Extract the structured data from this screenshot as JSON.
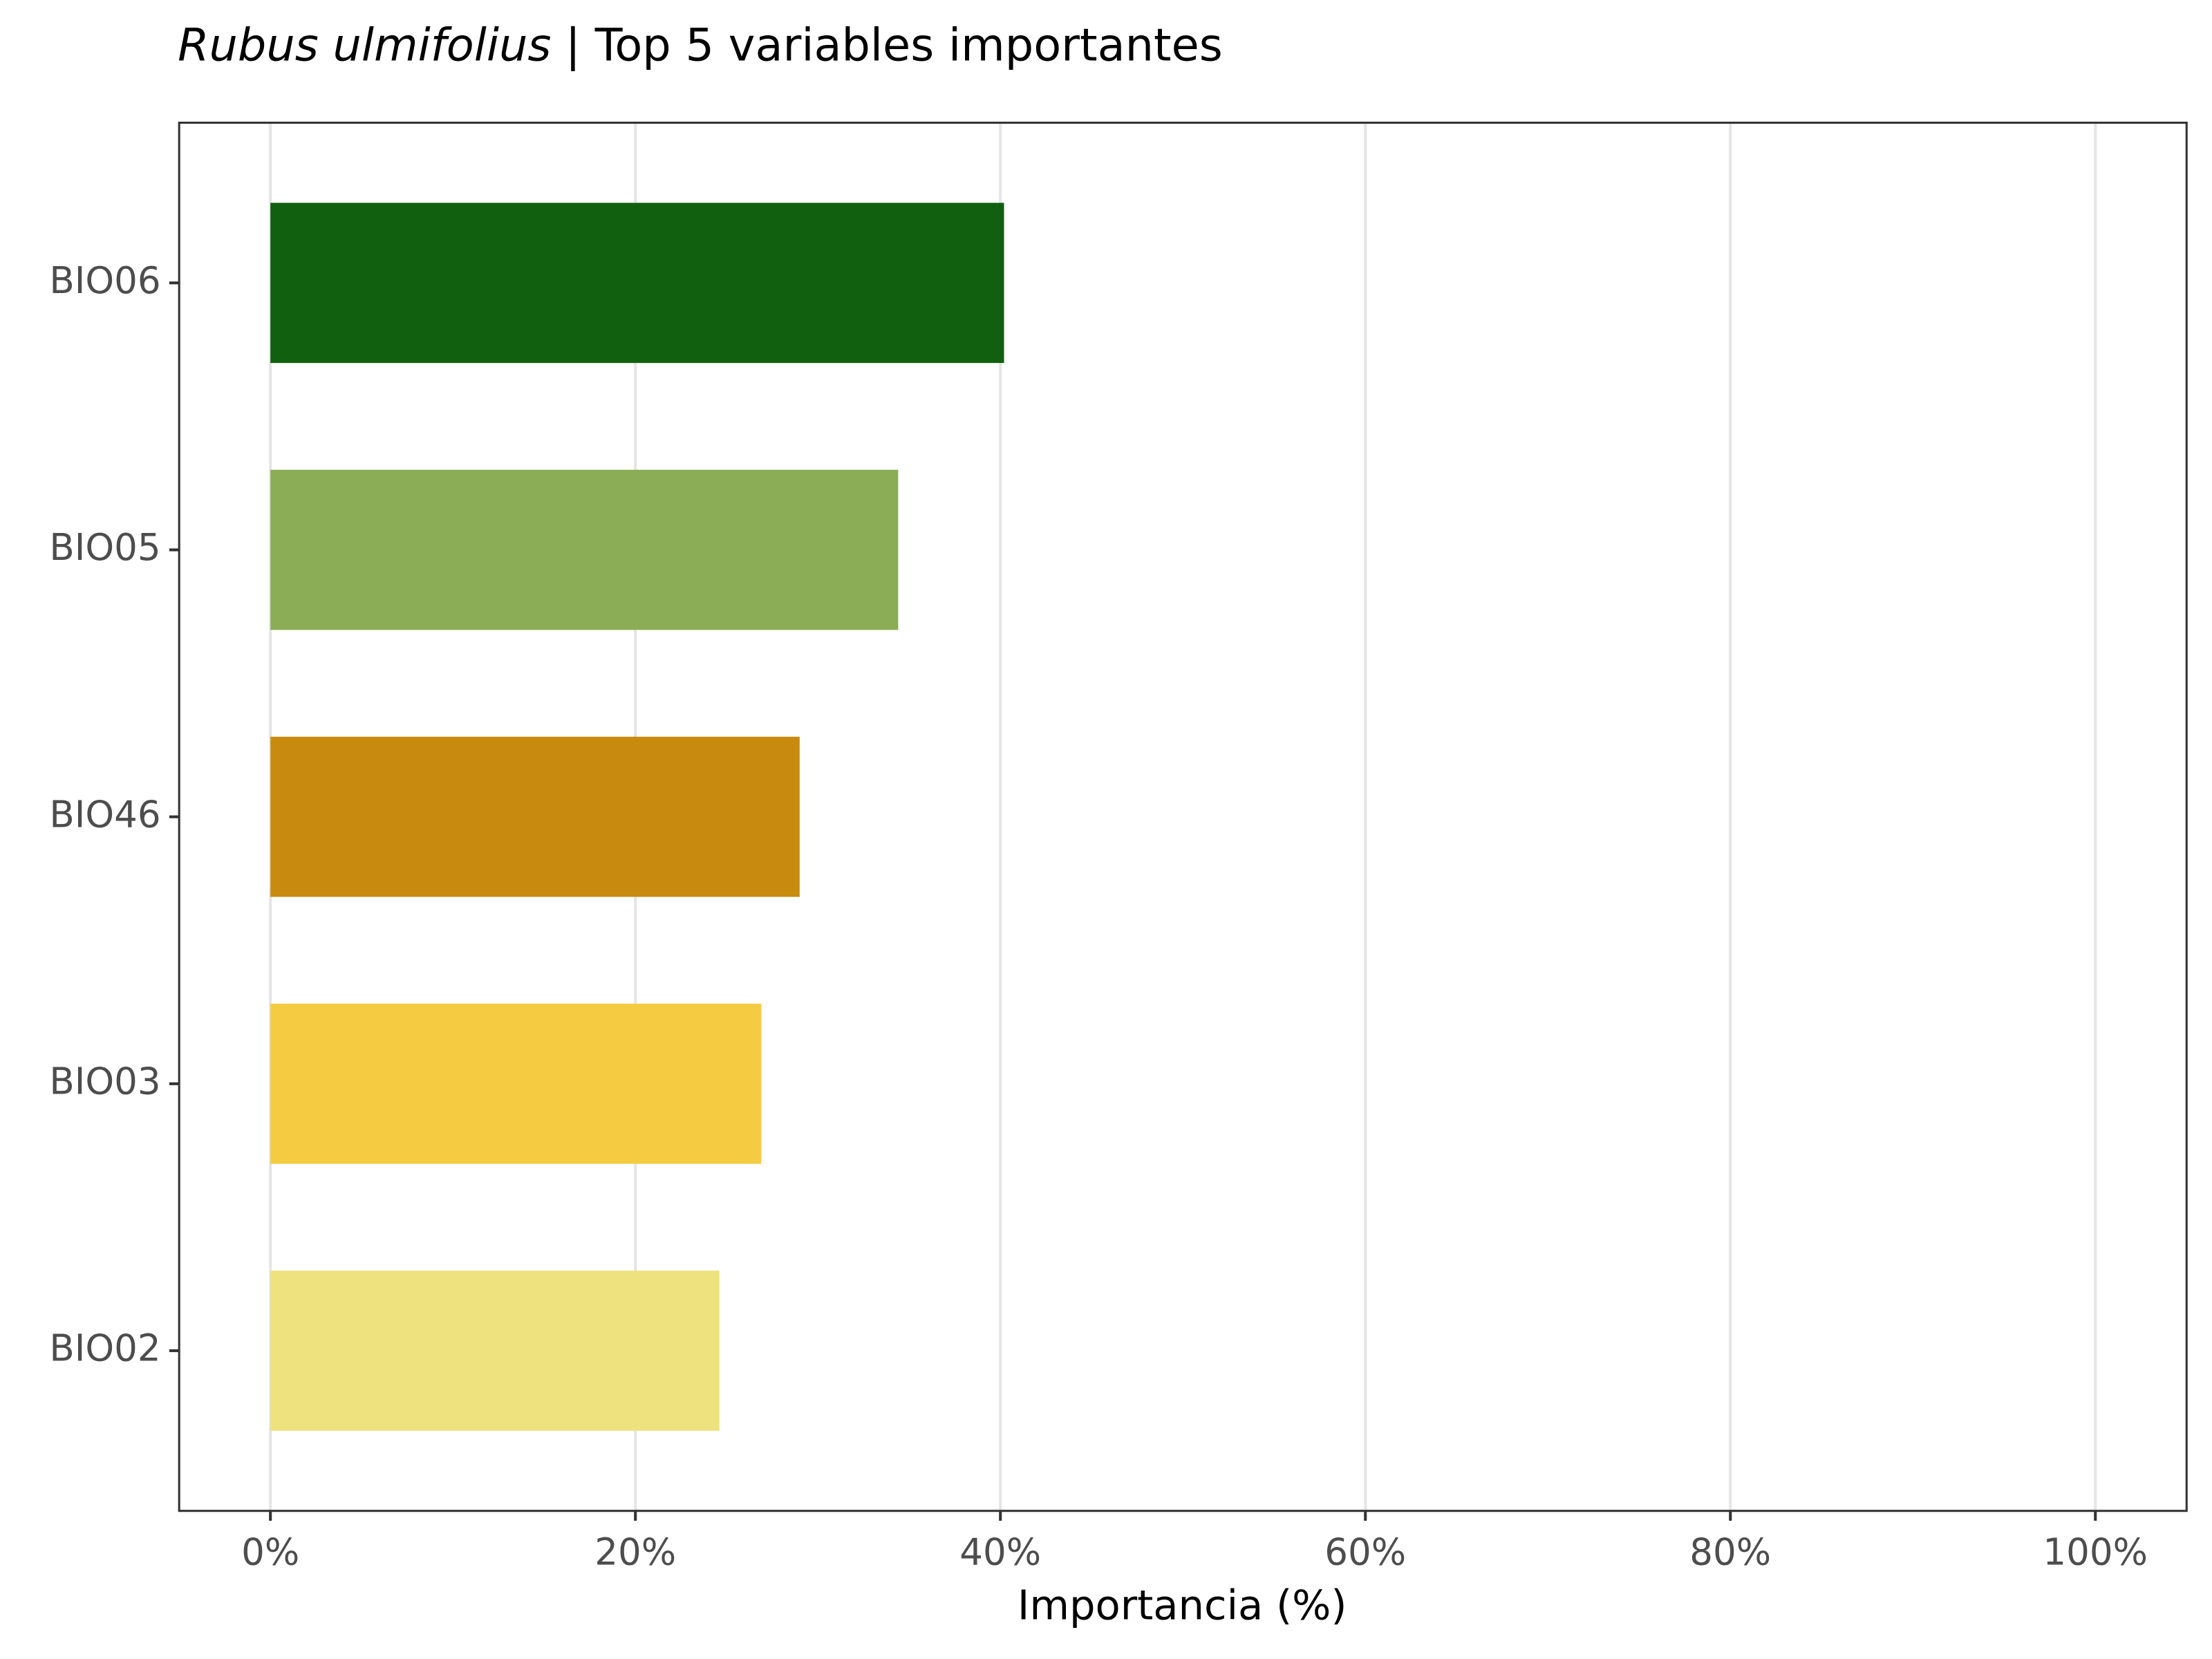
{
  "chart_data": {
    "type": "barh",
    "title": [
      "Rubus ulmifolius",
      "| Top 5 variables importantes"
    ],
    "x_label": "Importancia (%)",
    "categories": [
      "BIO06",
      "BIO05",
      "BIO46",
      "BIO03",
      "BIO02"
    ],
    "values": [
      40.2,
      34.4,
      29.0,
      26.9,
      24.6
    ],
    "colors": [
      "#11600f",
      "#8aad55",
      "#c88b0f",
      "#f5cb42",
      "#ede27e"
    ],
    "xlim": [
      -5,
      105
    ],
    "xticks": [
      {
        "value": 0,
        "label": "0%"
      },
      {
        "value": 20,
        "label": "20%"
      },
      {
        "value": 40,
        "label": "40%"
      },
      {
        "value": 60,
        "label": "60%"
      },
      {
        "value": 80,
        "label": "80%"
      },
      {
        "value": 100,
        "label": "100%"
      }
    ],
    "grid": true
  }
}
